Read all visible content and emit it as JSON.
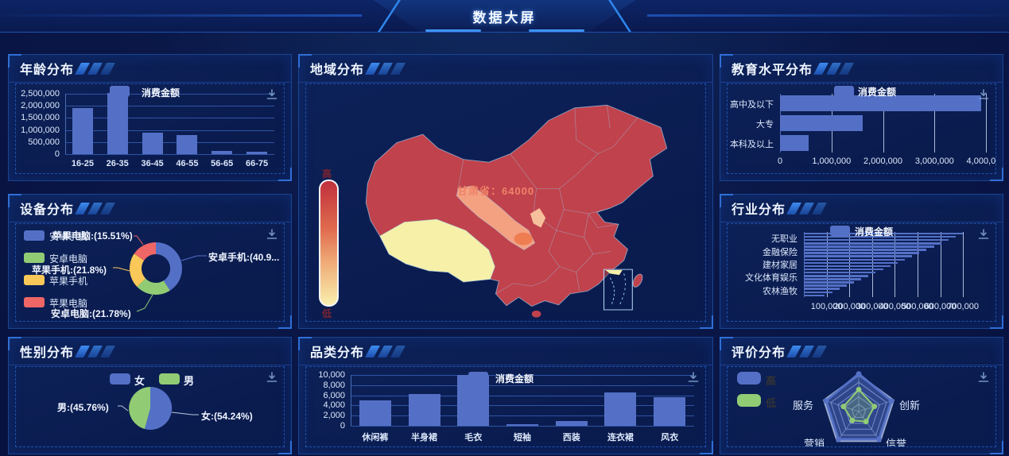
{
  "header": {
    "title": "数据大屏"
  },
  "palette": {
    "bar_blue": "#5470C6",
    "green": "#91CC75",
    "yellow": "#FAC858",
    "red": "#EE6666",
    "axis_text": "#dce8fb",
    "grid_blue": "#2e55a5",
    "grid_light": "#c9d6ee",
    "panel_border": "#1a4490",
    "legend_text_dark": "#333333"
  },
  "chart_data": [
    {
      "type": "bar",
      "panel_title": "年龄分布",
      "legend": "消费金额",
      "categories": [
        "16-25",
        "26-35",
        "36-45",
        "46-55",
        "56-65",
        "66-75"
      ],
      "values": [
        1900000,
        2550000,
        900000,
        780000,
        120000,
        110000
      ],
      "ylim": [
        0,
        2500000
      ],
      "ytick_labels": [
        "0",
        "500,000",
        "1,000,000",
        "1,500,000",
        "2,000,000",
        "2,500,000"
      ]
    },
    {
      "type": "map",
      "panel_title": "地域分布",
      "tooltip": "甘肃省：64000",
      "highlighted_region": "甘肃省",
      "highlighted_value": 64000,
      "visualmap": {
        "high_label": "高",
        "low_label": "低"
      },
      "colors": {
        "base": "#c0424c",
        "low": "#f6f0a8",
        "highlight": "#f4a182",
        "highlight_deep": "#ee7d52",
        "patch": "#f6c09c",
        "border": "#9cc4e4"
      }
    },
    {
      "type": "hbar",
      "panel_title": "教育水平分布",
      "legend": "消费金额",
      "categories": [
        "高中及以下",
        "大专",
        "本科及以上"
      ],
      "values": [
        3900000,
        1600000,
        560000
      ],
      "xlim": [
        0,
        4000000
      ],
      "xtick_labels": [
        "0",
        "1,000,000",
        "2,000,000",
        "3,000,000",
        "4,000,000"
      ]
    },
    {
      "type": "donut",
      "panel_title": "设备分布",
      "legend_items": [
        "安卓手机",
        "安卓电脑",
        "苹果手机",
        "苹果电脑"
      ],
      "slices": [
        {
          "name": "安卓手机",
          "pct": 40.93,
          "display": "安卓手机:(40.9...",
          "color": "#5470C6"
        },
        {
          "name": "安卓电脑",
          "pct": 21.78,
          "display": "安卓电脑:(21.78%)",
          "color": "#91CC75"
        },
        {
          "name": "苹果手机",
          "pct": 21.8,
          "display": "苹果手机:(21.8%)",
          "color": "#FAC858"
        },
        {
          "name": "苹果电脑",
          "pct": 15.51,
          "display": "苹果电脑:(15.51%)",
          "color": "#EE6666"
        }
      ]
    },
    {
      "type": "hbar",
      "panel_title": "行业分布",
      "legend": "消费金额",
      "visible_categories": [
        "无职业",
        "金融保险",
        "建材家居",
        "文化体育娱乐",
        "农林渔牧"
      ],
      "values": [
        700000,
        668000,
        636000,
        604000,
        572000,
        540000,
        508000,
        476000,
        444000,
        412000,
        380000,
        348000,
        316000,
        284000,
        252000,
        220000,
        188000,
        156000,
        124000,
        92000
      ],
      "xlim": [
        0,
        780000
      ],
      "xtick_labels": [
        "100,000",
        "200,000",
        "300,000",
        "400,000",
        "500,000",
        "600,000",
        "700,000"
      ]
    },
    {
      "type": "pie",
      "panel_title": "性别分布",
      "legend_items": [
        "女",
        "男"
      ],
      "slices": [
        {
          "name": "女",
          "pct": 54.24,
          "display": "女:(54.24%)",
          "color": "#5470C6"
        },
        {
          "name": "男",
          "pct": 45.76,
          "display": "男:(45.76%)",
          "color": "#91CC75"
        }
      ]
    },
    {
      "type": "bar",
      "panel_title": "品类分布",
      "legend": "消费金额",
      "categories": [
        "休闲裤",
        "半身裙",
        "毛衣",
        "短袖",
        "西装",
        "连衣裙",
        "风衣"
      ],
      "values": [
        5000,
        6200,
        10000,
        300,
        1000,
        6500,
        5600
      ],
      "ylim": [
        0,
        10000
      ],
      "ytick_labels": [
        "0",
        "2,000",
        "4,000",
        "6,000",
        "8,000",
        "10,000"
      ]
    },
    {
      "type": "radar",
      "panel_title": "评价分布",
      "legend_items": [
        {
          "label": "高",
          "color": "#5470C6"
        },
        {
          "label": "低",
          "color": "#91CC75"
        }
      ],
      "axes": [
        "",
        "创新",
        "信誉",
        "营销",
        "服务"
      ],
      "series": [
        {
          "name": "高",
          "values": [
            1.03,
            0.94,
            0.94,
            0.94,
            0.94
          ]
        },
        {
          "name": "低",
          "values": [
            0.6,
            0.45,
            0.34,
            0.3,
            0.44
          ]
        }
      ]
    }
  ]
}
